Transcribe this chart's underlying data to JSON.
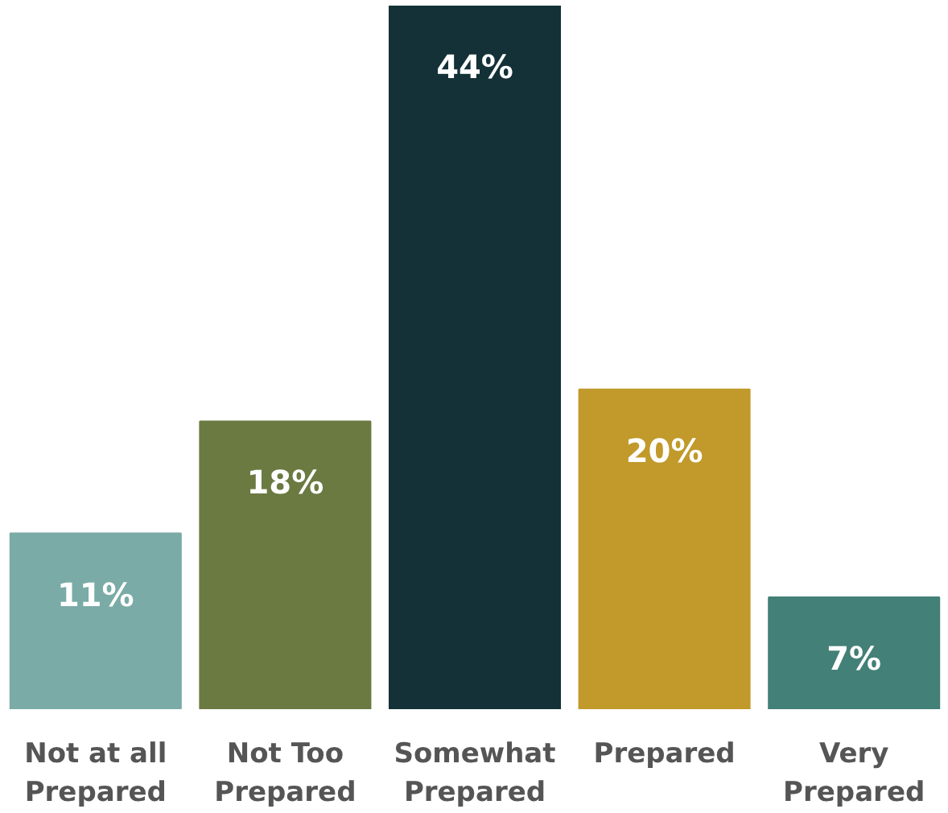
{
  "chart_data": {
    "type": "bar",
    "categories": [
      "Not at all\nPrepared",
      "Not Too\nPrepared",
      "Somewhat\nPrepared",
      "Prepared",
      "Very\nPrepared"
    ],
    "values": [
      11,
      18,
      44,
      20,
      7
    ],
    "colors": [
      "#7aaba6",
      "#6b7a41",
      "#133137",
      "#c19a2b",
      "#438077"
    ],
    "value_labels": [
      "11%",
      "18%",
      "44%",
      "20%",
      "7%"
    ]
  }
}
